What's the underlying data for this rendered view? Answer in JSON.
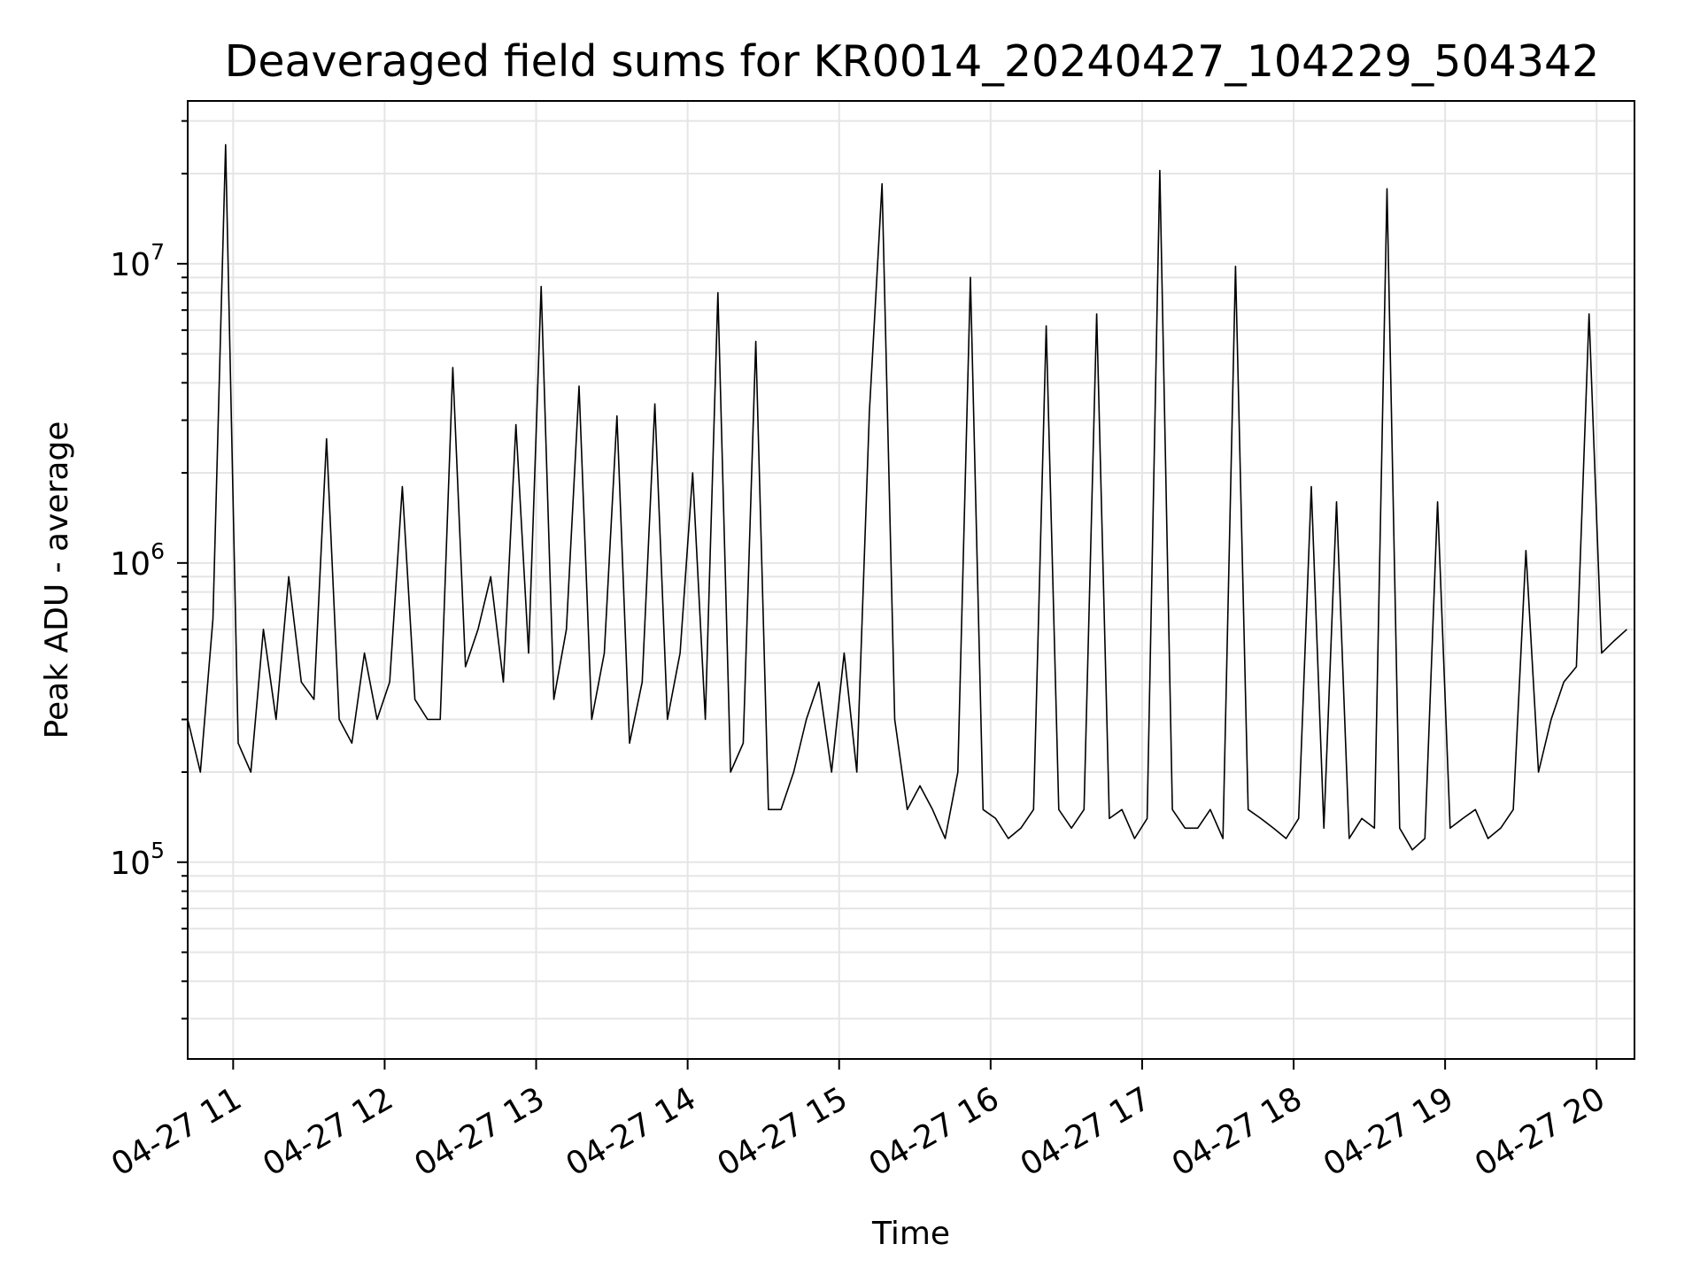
{
  "chart_data": {
    "type": "line",
    "title": "Deaveraged field sums for KR0014_20240427_104229_504342",
    "xlabel": "Time",
    "ylabel": "Peak ADU - average",
    "x_scale": "time",
    "y_scale": "log",
    "xlim": [
      "2024-04-27 10:42",
      "2024-04-27 20:15"
    ],
    "ylim": [
      22000,
      35000000
    ],
    "x_ticks": [
      "04-27 11",
      "04-27 12",
      "04-27 13",
      "04-27 14",
      "04-27 15",
      "04-27 16",
      "04-27 17",
      "04-27 18",
      "04-27 19",
      "04-27 20"
    ],
    "y_ticks": [
      {
        "base": "10",
        "exp": "5",
        "value": 100000
      },
      {
        "base": "10",
        "exp": "6",
        "value": 1000000
      },
      {
        "base": "10",
        "exp": "7",
        "value": 10000000
      }
    ],
    "grid": true,
    "line_color": "#000000",
    "grid_color": "#e5e5e5",
    "series": [
      {
        "x": [
          "10:42",
          "10:47",
          "10:52",
          "10:57",
          "11:02",
          "11:07",
          "11:12",
          "11:17",
          "11:22",
          "11:27",
          "11:32",
          "11:37",
          "11:42",
          "11:47",
          "11:52",
          "11:57",
          "12:02",
          "12:07",
          "12:12",
          "12:17",
          "12:22",
          "12:27",
          "12:32",
          "12:37",
          "12:42",
          "12:47",
          "12:52",
          "12:57",
          "13:02",
          "13:07",
          "13:12",
          "13:17",
          "13:22",
          "13:27",
          "13:32",
          "13:37",
          "13:42",
          "13:47",
          "13:52",
          "13:57",
          "14:02",
          "14:07",
          "14:12",
          "14:17",
          "14:22",
          "14:27",
          "14:32",
          "14:37",
          "14:42",
          "14:47",
          "14:52",
          "14:57",
          "15:02",
          "15:07",
          "15:12",
          "15:17",
          "15:22",
          "15:27",
          "15:32",
          "15:37",
          "15:42",
          "15:47",
          "15:52",
          "15:57",
          "16:02",
          "16:07",
          "16:12",
          "16:17",
          "16:22",
          "16:27",
          "16:32",
          "16:37",
          "16:42",
          "16:47",
          "16:52",
          "16:57",
          "17:02",
          "17:07",
          "17:12",
          "17:17",
          "17:22",
          "17:27",
          "17:32",
          "17:37",
          "17:42",
          "17:47",
          "17:52",
          "17:57",
          "18:02",
          "18:07",
          "18:12",
          "18:17",
          "18:22",
          "18:27",
          "18:32",
          "18:37",
          "18:42",
          "18:47",
          "18:52",
          "18:57",
          "19:02",
          "19:07",
          "19:12",
          "19:17",
          "19:22",
          "19:27",
          "19:32",
          "19:37",
          "19:42",
          "19:47",
          "19:52",
          "19:57",
          "20:02",
          "20:07",
          "20:12"
        ],
        "y": [
          300000,
          200000,
          650000,
          25000000,
          250000,
          200000,
          600000,
          300000,
          900000,
          400000,
          350000,
          2600000,
          300000,
          250000,
          500000,
          300000,
          400000,
          1800000,
          350000,
          300000,
          300000,
          4500000,
          450000,
          600000,
          900000,
          400000,
          2900000,
          500000,
          8400000,
          350000,
          600000,
          3900000,
          300000,
          500000,
          3100000,
          250000,
          400000,
          3400000,
          300000,
          500000,
          2000000,
          300000,
          8000000,
          200000,
          250000,
          5500000,
          150000,
          150000,
          200000,
          300000,
          400000,
          200000,
          500000,
          200000,
          3200000,
          18500000,
          300000,
          150000,
          180000,
          150000,
          120000,
          200000,
          9000000,
          150000,
          140000,
          120000,
          130000,
          150000,
          6200000,
          150000,
          130000,
          150000,
          6800000,
          140000,
          150000,
          120000,
          140000,
          20500000,
          150000,
          130000,
          130000,
          150000,
          120000,
          9800000,
          150000,
          140000,
          130000,
          120000,
          140000,
          1800000,
          130000,
          1600000,
          120000,
          140000,
          130000,
          17800000,
          130000,
          110000,
          120000,
          1600000,
          130000,
          140000,
          150000,
          120000,
          130000,
          150000,
          1100000,
          200000,
          300000,
          400000,
          450000,
          6800000,
          500000,
          550000,
          600000
        ]
      }
    ]
  }
}
